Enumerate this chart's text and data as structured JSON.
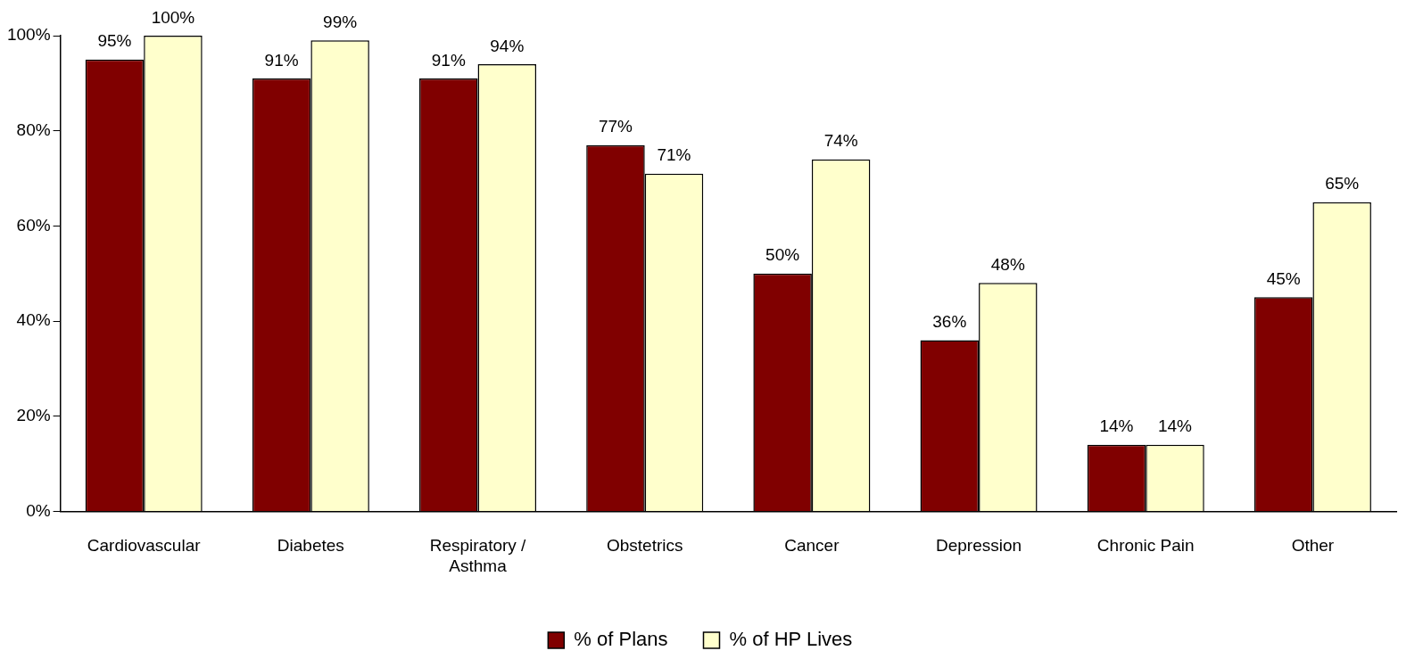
{
  "chart_data": {
    "type": "bar",
    "categories": [
      "Cardiovascular",
      "Diabetes",
      "Respiratory /\nAsthma",
      "Obstetrics",
      "Cancer",
      "Depression",
      "Chronic Pain",
      "Other"
    ],
    "series": [
      {
        "name": "% of Plans",
        "color": "#800000",
        "values": [
          95,
          91,
          91,
          77,
          50,
          36,
          14,
          45
        ],
        "value_labels": [
          "95%",
          "91%",
          "91%",
          "77%",
          "50%",
          "36%",
          "14%",
          "45%"
        ]
      },
      {
        "name": "% of HP Lives",
        "color": "#ffffcc",
        "values": [
          100,
          99,
          94,
          71,
          74,
          48,
          14,
          65
        ],
        "value_labels": [
          "100%",
          "99%",
          "94%",
          "71%",
          "74%",
          "48%",
          "14%",
          "65%"
        ]
      }
    ],
    "ylim": [
      0,
      100
    ],
    "yticks": [
      {
        "value": 0,
        "label": "0%"
      },
      {
        "value": 20,
        "label": "20%"
      },
      {
        "value": 40,
        "label": "40%"
      },
      {
        "value": 60,
        "label": "60%"
      },
      {
        "value": 80,
        "label": "80%"
      },
      {
        "value": 100,
        "label": "100%"
      }
    ],
    "grid": false,
    "legend": "bottom"
  }
}
